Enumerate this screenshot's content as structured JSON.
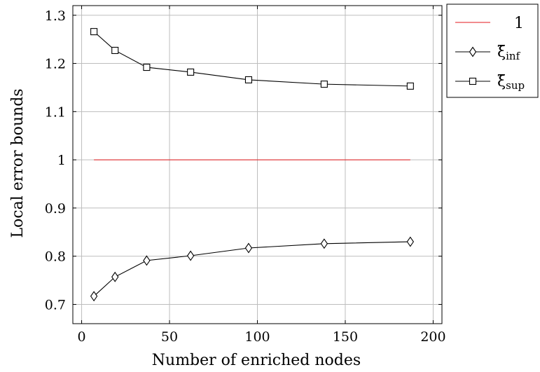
{
  "chart_data": {
    "type": "line",
    "xlabel": "Number of enriched nodes",
    "ylabel": "Local error bounds",
    "xlim": [
      -5,
      205
    ],
    "ylim": [
      0.66,
      1.32
    ],
    "xticks": [
      0,
      50,
      100,
      150,
      200
    ],
    "yticks": [
      0.7,
      0.8,
      0.9,
      1,
      1.1,
      1.2,
      1.3
    ],
    "xtick_labels": [
      "0",
      "50",
      "100",
      "150",
      "200"
    ],
    "ytick_labels": [
      "0.7",
      "0.8",
      "0.9",
      "1",
      "1.1",
      "1.2",
      "1.3"
    ],
    "grid": true,
    "legend_position": "outside-top-right",
    "series": [
      {
        "name": "1",
        "color": "#e41a1c",
        "marker": "none",
        "x": [
          7,
          187
        ],
        "y": [
          1.0,
          1.0
        ]
      },
      {
        "name": "ξ̄inf",
        "legend_main": "ξ̄",
        "legend_sub": "inf",
        "color": "#000000",
        "marker": "diamond",
        "x": [
          7,
          19,
          37,
          62,
          95,
          138,
          187
        ],
        "y": [
          0.717,
          0.757,
          0.791,
          0.801,
          0.817,
          0.826,
          0.83
        ]
      },
      {
        "name": "ξ̄sup",
        "legend_main": "ξ̄",
        "legend_sub": "sup",
        "color": "#000000",
        "marker": "square",
        "x": [
          7,
          19,
          37,
          62,
          95,
          138,
          187
        ],
        "y": [
          1.266,
          1.227,
          1.192,
          1.182,
          1.166,
          1.157,
          1.153
        ]
      }
    ]
  }
}
